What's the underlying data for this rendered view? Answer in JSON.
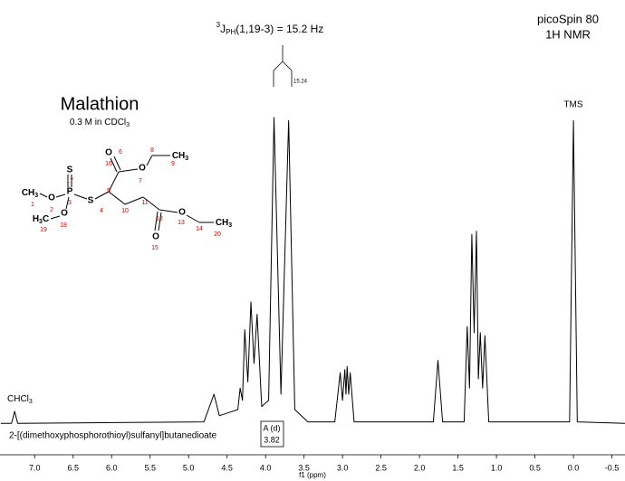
{
  "chart_data": {
    "type": "line",
    "title": "Malathion",
    "subtitle": {
      "text": "0.3 M in CDCl",
      "sub": "3"
    },
    "instrument": [
      "picoSpin 80",
      "1H NMR"
    ],
    "compound_name": "2-[(dimethoxyphosphorothioyl)sulfanyl]butanedioate",
    "xlabel": "f1 (ppm)",
    "coupling": {
      "sup": "3",
      "symbol": "J",
      "sub": "PH",
      "text": "(1,19-3) = 15.2 Hz",
      "splitting": "15.24"
    },
    "reference_label": "TMS",
    "solvent_label": {
      "text": "CHCl",
      "sub": "3"
    },
    "integral": {
      "label": "A (d)",
      "value": 3.82
    },
    "color": "#000000",
    "x": [
      7.44,
      7.3,
      7.26,
      7.22,
      4.8,
      4.67,
      4.6,
      4.36,
      4.33,
      4.3,
      4.27,
      4.23,
      4.19,
      4.15,
      4.11,
      4.05,
      3.96,
      3.89,
      3.8,
      3.7,
      3.62,
      3.45,
      3.1,
      3.03,
      3.0,
      2.97,
      2.955,
      2.94,
      2.92,
      2.9,
      2.85,
      1.82,
      1.76,
      1.7,
      1.42,
      1.38,
      1.35,
      1.32,
      1.29,
      1.26,
      1.235,
      1.21,
      1.18,
      1.15,
      1.1,
      0.05,
      0.0,
      -0.05,
      -0.67
    ],
    "values": [
      0.5,
      0.5,
      4.4,
      0.5,
      1,
      10,
      3,
      5,
      12,
      8,
      31,
      14,
      40,
      20,
      36,
      6,
      8,
      100,
      10,
      99,
      5,
      1,
      1,
      17,
      8,
      18,
      10,
      19,
      10,
      17,
      1,
      1,
      21,
      1,
      1,
      32,
      12,
      62,
      30,
      63,
      15,
      30,
      12,
      29,
      1,
      1,
      99,
      1,
      0.5
    ],
    "xlim": [
      7.45,
      -0.67
    ],
    "ylim": [
      0,
      100
    ],
    "xticks": [
      {
        "value": 7,
        "label": "7.0"
      },
      6.5,
      {
        "value": 6,
        "label": "6.0"
      },
      5.5,
      {
        "value": 5,
        "label": "5.0"
      },
      4.5,
      {
        "value": 4,
        "label": "4.0"
      },
      3.5,
      {
        "value": 3,
        "label": "3.0"
      },
      2.5,
      {
        "value": 2,
        "label": "2.0"
      },
      1.5,
      {
        "value": 1,
        "label": "1.0"
      },
      0.5,
      {
        "value": 0,
        "label": "0.0"
      },
      -0.5
    ],
    "molecule": {
      "atoms": [
        "S",
        "P",
        "O",
        "O",
        "S",
        "O",
        "O",
        "O",
        "O"
      ],
      "methyls": [
        {
          "a": "CH",
          "b": "3"
        },
        {
          "a": "H",
          "b": "3",
          "c": "C"
        },
        {
          "a": "CH",
          "b": "3"
        },
        {
          "a": "CH",
          "b": "3"
        }
      ],
      "numbers": [
        1,
        2,
        3,
        4,
        5,
        6,
        7,
        8,
        9,
        10,
        11,
        12,
        13,
        14,
        15,
        16,
        17,
        18,
        19,
        20
      ]
    }
  }
}
